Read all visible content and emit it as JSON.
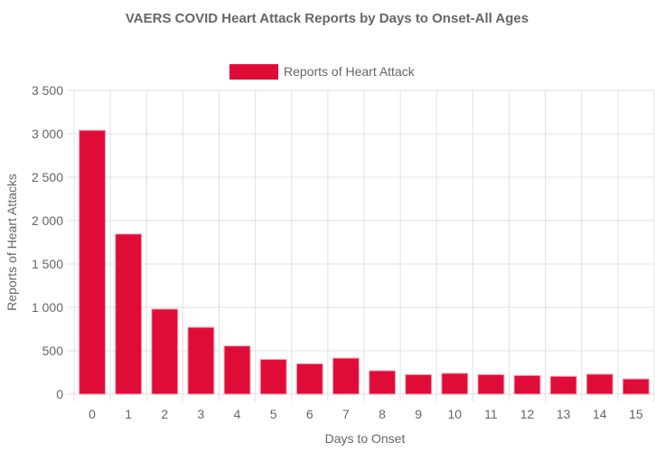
{
  "chart_data": {
    "type": "bar",
    "title": "VAERS COVID Heart Attack Reports by Days to Onset-All Ages",
    "xlabel": "Days to Onset",
    "ylabel": "Reports of Heart Attacks",
    "categories": [
      "0",
      "1",
      "2",
      "3",
      "4",
      "5",
      "6",
      "7",
      "8",
      "9",
      "10",
      "11",
      "12",
      "13",
      "14",
      "15"
    ],
    "series": [
      {
        "name": "Reports of Heart Attack",
        "color": "#e00c38",
        "values": [
          3040,
          1845,
          980,
          770,
          555,
          400,
          350,
          415,
          270,
          225,
          240,
          225,
          215,
          205,
          230,
          175
        ]
      }
    ],
    "ylim": [
      0,
      3500
    ],
    "yticks": [
      "3 500",
      "3 000",
      "2 500",
      "2 000",
      "1 500",
      "1 000",
      "500",
      "0"
    ],
    "ytick_values": [
      3500,
      3000,
      2500,
      2000,
      1500,
      1000,
      500,
      0
    ],
    "grid": true,
    "legend_position": "top"
  }
}
